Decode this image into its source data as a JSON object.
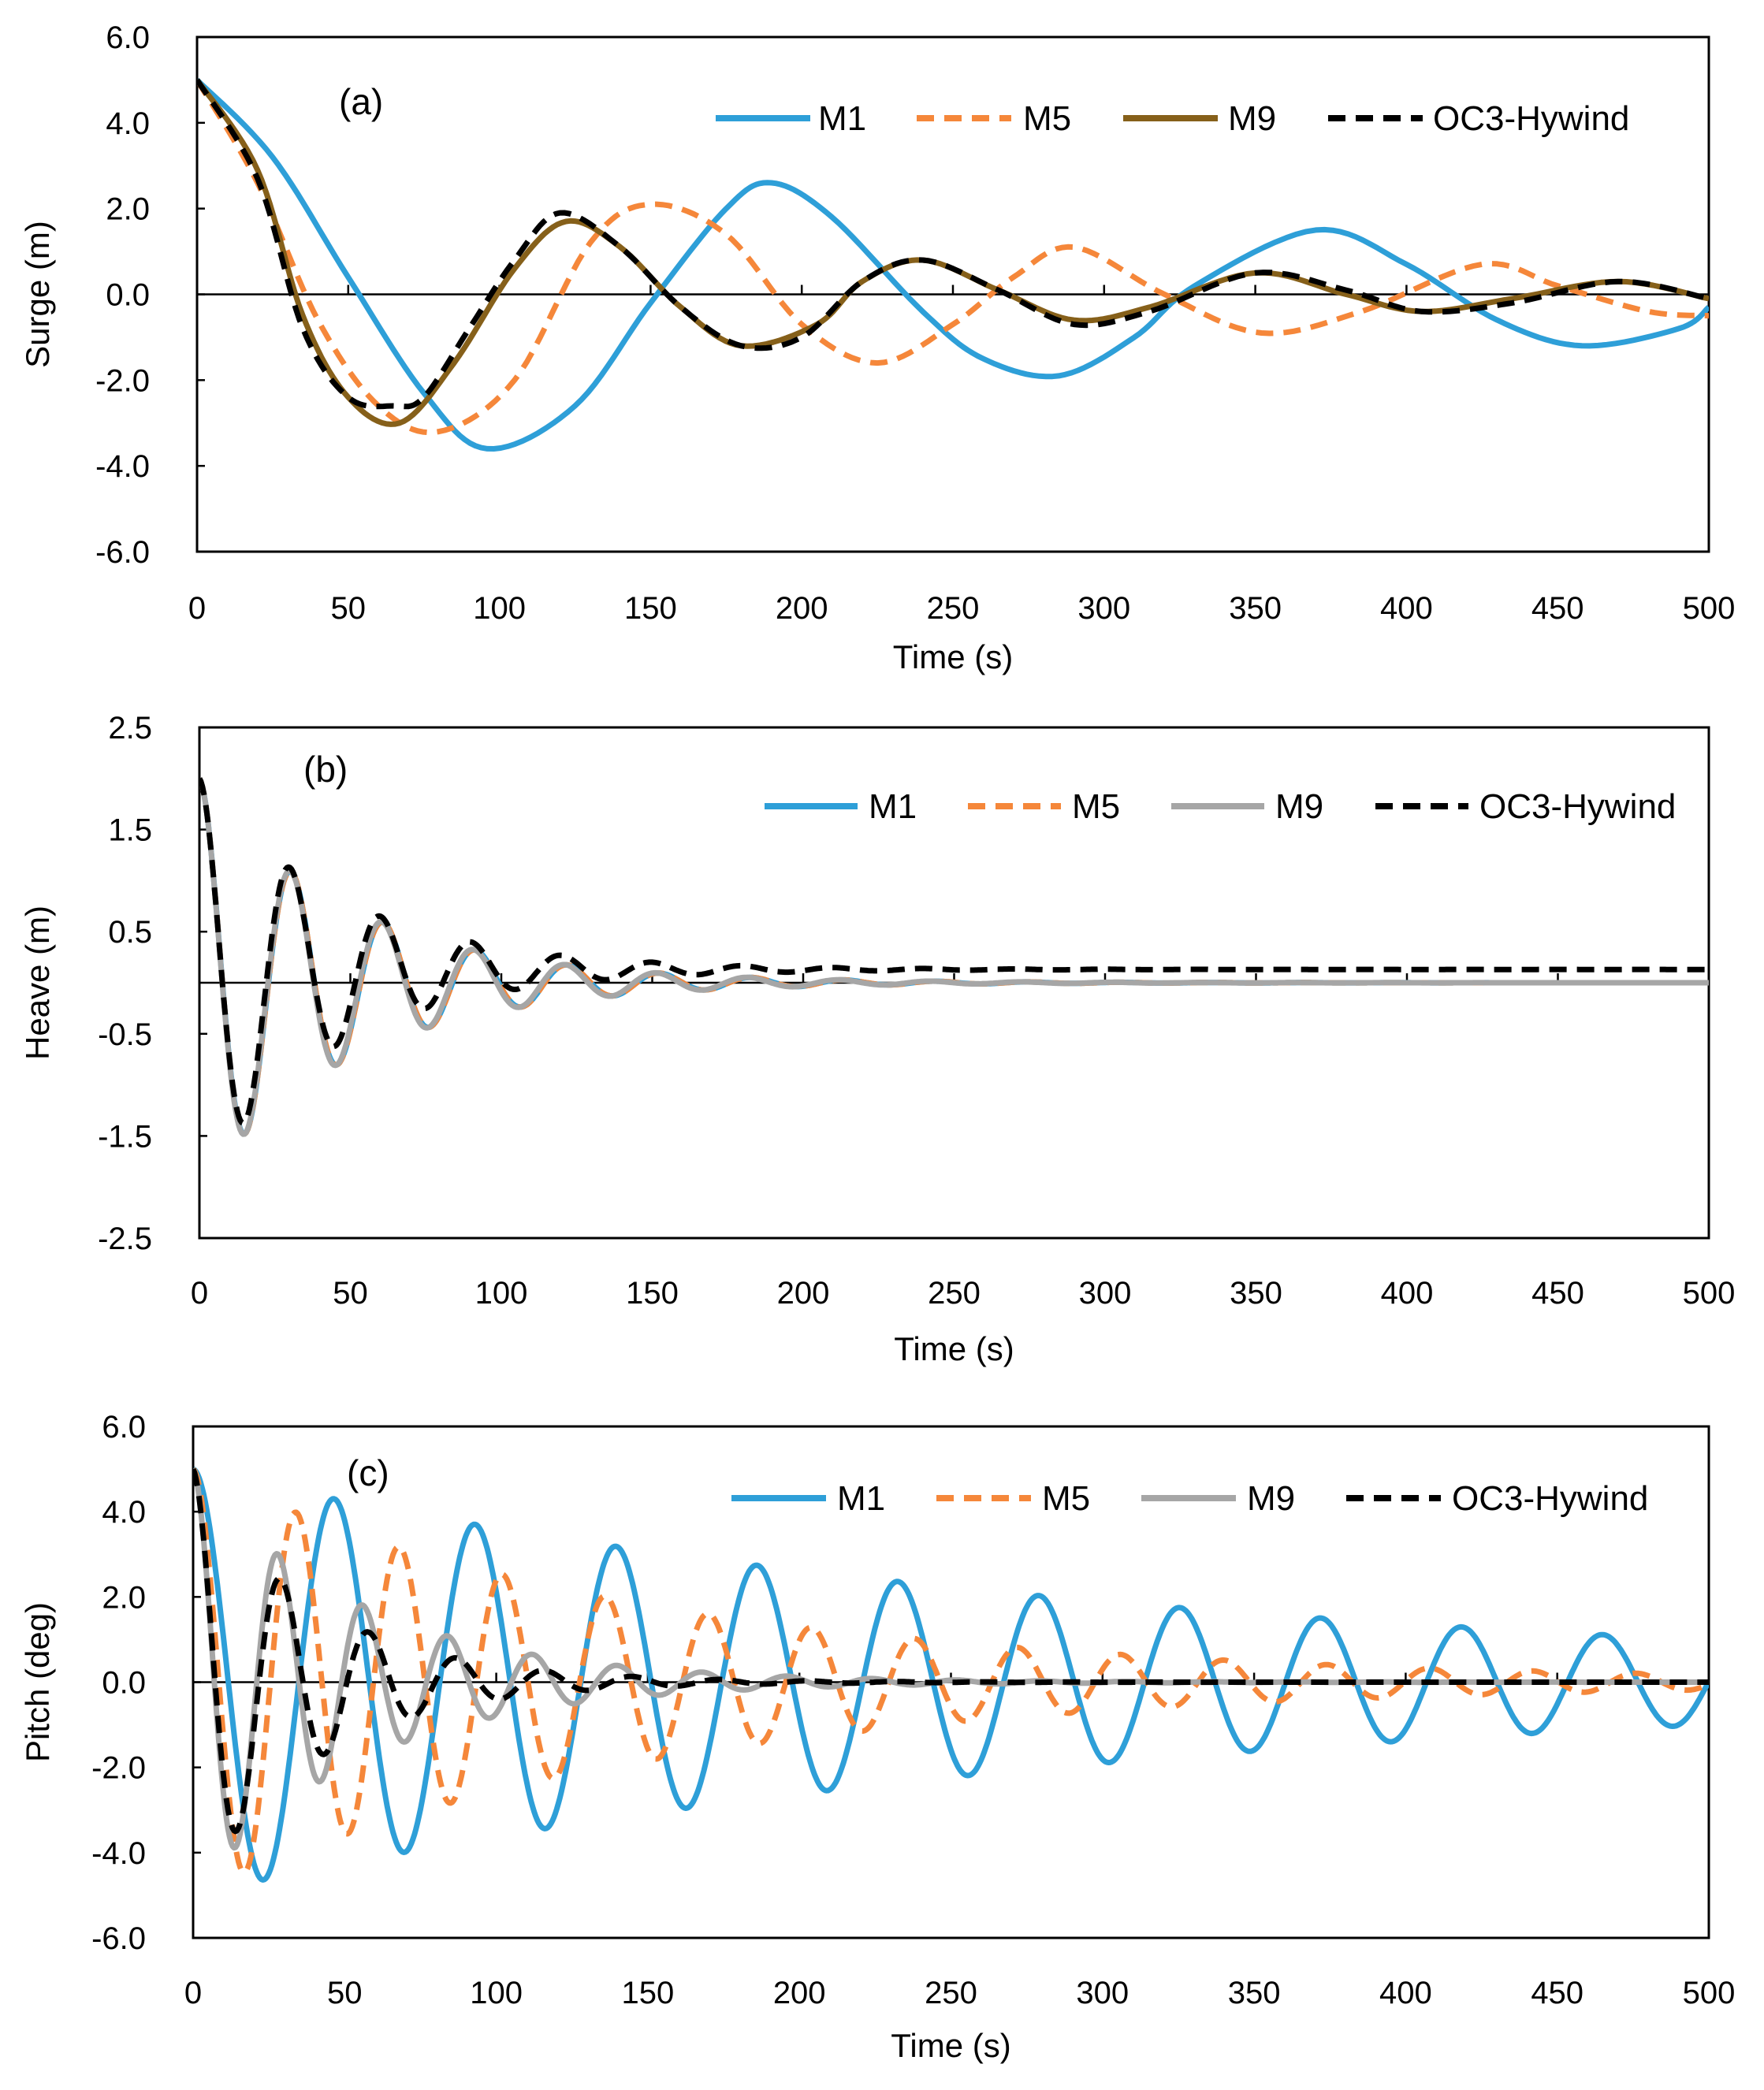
{
  "chart_data": [
    {
      "id": "a",
      "type": "line",
      "panel_label": "(a)",
      "xlabel": "Time (s)",
      "ylabel": "Surge  (m)",
      "xlim": [
        0,
        500
      ],
      "ylim": [
        -6,
        6
      ],
      "xticks": [
        "0",
        "50",
        "100",
        "150",
        "200",
        "250",
        "300",
        "350",
        "400",
        "450",
        "500"
      ],
      "yticks": [
        "-6.0",
        "-4.0",
        "-2.0",
        "0.0",
        "2.0",
        "4.0",
        "6.0"
      ],
      "legend_position": "top-right",
      "series": [
        {
          "name": "M1",
          "color": "#2e9fd8",
          "dash": "solid",
          "x": [
            0,
            25,
            50,
            75,
            96,
            125,
            150,
            175,
            190,
            210,
            240,
            260,
            285,
            310,
            330,
            370,
            400,
            430,
            458,
            490,
            500
          ],
          "values": [
            5.0,
            3.2,
            0.4,
            -2.3,
            -3.6,
            -2.6,
            -0.2,
            2.0,
            2.6,
            1.8,
            -0.4,
            -1.5,
            -1.9,
            -1.0,
            0.2,
            1.5,
            0.7,
            -0.6,
            -1.2,
            -0.8,
            -0.3
          ]
        },
        {
          "name": "M5",
          "color": "#f5873a",
          "dash": "dashed",
          "x": [
            0,
            20,
            40,
            60,
            80,
            105,
            130,
            150,
            175,
            200,
            225,
            250,
            270,
            290,
            320,
            352,
            385,
            425,
            450,
            480,
            500
          ],
          "values": [
            5.0,
            2.6,
            -0.6,
            -2.6,
            -3.2,
            -2.0,
            1.2,
            2.1,
            1.4,
            -0.7,
            -1.6,
            -0.7,
            0.4,
            1.1,
            0.0,
            -0.9,
            -0.4,
            0.7,
            0.2,
            -0.4,
            -0.5
          ]
        },
        {
          "name": "M9",
          "color": "#86601a",
          "dash": "solid",
          "x": [
            0,
            20,
            35,
            50,
            67,
            85,
            105,
            122,
            140,
            160,
            180,
            205,
            220,
            240,
            265,
            290,
            315,
            350,
            380,
            405,
            435,
            470,
            500
          ],
          "values": [
            5.0,
            2.9,
            -0.5,
            -2.4,
            -3.0,
            -1.6,
            0.6,
            1.7,
            1.1,
            -0.3,
            -1.2,
            -0.7,
            0.3,
            0.8,
            0.1,
            -0.6,
            -0.3,
            0.5,
            0.0,
            -0.4,
            -0.1,
            0.3,
            -0.1
          ]
        },
        {
          "name": "OC3-Hywind",
          "color": "#000000",
          "dash": "dashed",
          "x": [
            0,
            20,
            35,
            50,
            65,
            75,
            90,
            105,
            120,
            140,
            160,
            180,
            200,
            220,
            240,
            265,
            290,
            315,
            350,
            380,
            405,
            435,
            470,
            500
          ],
          "values": [
            5.0,
            2.7,
            -0.8,
            -2.4,
            -2.6,
            -2.4,
            -0.8,
            0.8,
            1.9,
            1.1,
            -0.3,
            -1.2,
            -1.0,
            0.3,
            0.8,
            0.1,
            -0.7,
            -0.4,
            0.5,
            0.1,
            -0.4,
            -0.2,
            0.3,
            -0.1
          ]
        }
      ]
    },
    {
      "id": "b",
      "type": "line",
      "panel_label": "(b)",
      "xlabel": "Time (s)",
      "ylabel": "Heave  (m)",
      "xlim": [
        0,
        500
      ],
      "ylim": [
        -2.5,
        2.5
      ],
      "xticks": [
        "0",
        "50",
        "100",
        "150",
        "200",
        "250",
        "300",
        "350",
        "400",
        "450",
        "500"
      ],
      "yticks": [
        "-2.5",
        "-1.5",
        "-0.5",
        "0.5",
        "1.5",
        "2.5"
      ],
      "legend_position": "top-right",
      "series": [
        {
          "name": "M1",
          "color": "#2e9fd8",
          "dash": "solid",
          "damped": {
            "a0": 2.0,
            "period": 30.5,
            "tau": 50,
            "offset": 0
          }
        },
        {
          "name": "M5",
          "color": "#f5873a",
          "dash": "dashed",
          "damped": {
            "a0": 2.0,
            "period": 30.5,
            "tau": 50,
            "offset": 0
          }
        },
        {
          "name": "M9",
          "color": "#a6a6a6",
          "dash": "solid",
          "damped": {
            "a0": 2.0,
            "period": 30.3,
            "tau": 50,
            "offset": 0
          }
        },
        {
          "name": "OC3-Hywind",
          "color": "#000000",
          "dash": "dashed",
          "damped": {
            "a0": 2.0,
            "period": 30.0,
            "tau": 45,
            "offset": 0.13
          }
        }
      ]
    },
    {
      "id": "c",
      "type": "line",
      "panel_label": "(c)",
      "xlabel": "Time (s)",
      "ylabel": "Pitch (deg)",
      "xlim": [
        0,
        500
      ],
      "ylim": [
        -6,
        6
      ],
      "xticks": [
        "0",
        "50",
        "100",
        "150",
        "200",
        "250",
        "300",
        "350",
        "400",
        "450",
        "500"
      ],
      "yticks": [
        "-6.0",
        "-4.0",
        "-2.0",
        "0.0",
        "2.0",
        "4.0",
        "6.0"
      ],
      "legend_position": "top-right",
      "series": [
        {
          "name": "M1",
          "color": "#2e9fd8",
          "dash": "solid",
          "damped": {
            "a0": 5.0,
            "period": 46.5,
            "tau": 310,
            "offset": 0
          }
        },
        {
          "name": "M5",
          "color": "#f5873a",
          "dash": "dashed",
          "damped": {
            "a0": 5.0,
            "period": 34.0,
            "tau": 150,
            "offset": 0
          }
        },
        {
          "name": "M9",
          "color": "#a6a6a6",
          "dash": "solid",
          "damped": {
            "a0": 5.0,
            "period": 28.0,
            "tau": 55,
            "offset": 0
          }
        },
        {
          "name": "OC3-Hywind",
          "color": "#000000",
          "dash": "dashed",
          "damped": {
            "a0": 5.0,
            "period": 29.0,
            "tau": 40,
            "offset": 0
          }
        }
      ]
    }
  ]
}
